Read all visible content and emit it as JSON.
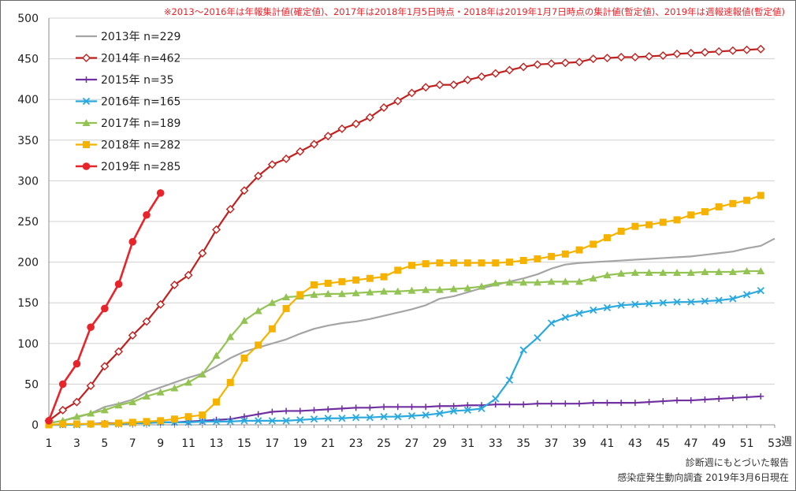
{
  "chart_data": {
    "type": "line",
    "title": "",
    "note": "※2013～2016年は年報集計値(確定値)、2017年は2018年1月5日時点・2018年は2019年1月7日時点の集計値(暫定値)、2019年は週報速報値(暫定値)",
    "xlabel": "週",
    "ylabel": "",
    "xlim": [
      1,
      53
    ],
    "ylim": [
      0,
      500
    ],
    "x_ticks": [
      1,
      3,
      5,
      7,
      9,
      11,
      13,
      15,
      17,
      19,
      21,
      23,
      25,
      27,
      29,
      31,
      33,
      35,
      37,
      39,
      41,
      43,
      45,
      47,
      49,
      51,
      53
    ],
    "y_ticks": [
      0,
      50,
      100,
      150,
      200,
      250,
      300,
      350,
      400,
      450,
      500
    ],
    "grid": "horizontal",
    "legend_position": "top-left",
    "source_lines": [
      "診断週にもとづいた報告",
      "感染症発生動向調査 2019年3月6日現在"
    ],
    "series": [
      {
        "name": "2013年 n=229",
        "color": "#a5a5a5",
        "marker": "none",
        "values": [
          2,
          5,
          9,
          14,
          22,
          26,
          31,
          40,
          46,
          52,
          58,
          63,
          72,
          82,
          90,
          95,
          100,
          105,
          112,
          118,
          122,
          125,
          127,
          130,
          134,
          138,
          142,
          147,
          155,
          158,
          163,
          168,
          172,
          176,
          180,
          185,
          192,
          197,
          199,
          200,
          201,
          202,
          203,
          204,
          205,
          206,
          207,
          209,
          211,
          213,
          217,
          220,
          229
        ]
      },
      {
        "name": "2014年 n=462",
        "color": "#c0201e",
        "marker": "diamond-open",
        "values": [
          5,
          18,
          28,
          48,
          72,
          90,
          110,
          127,
          148,
          172,
          184,
          211,
          240,
          265,
          288,
          306,
          320,
          327,
          336,
          345,
          355,
          364,
          370,
          378,
          390,
          398,
          408,
          415,
          418,
          418,
          424,
          428,
          432,
          436,
          440,
          443,
          444,
          445,
          446,
          450,
          451,
          452,
          452,
          453,
          454,
          456,
          457,
          458,
          459,
          460,
          461,
          462
        ]
      },
      {
        "name": "2015年 n=35",
        "color": "#7030a0",
        "marker": "plus",
        "values": [
          0,
          0,
          1,
          1,
          2,
          2,
          2,
          3,
          3,
          3,
          4,
          5,
          6,
          7,
          10,
          13,
          16,
          17,
          17,
          18,
          19,
          20,
          21,
          21,
          22,
          22,
          22,
          22,
          23,
          23,
          24,
          24,
          25,
          25,
          25,
          26,
          26,
          26,
          26,
          27,
          27,
          27,
          27,
          28,
          29,
          30,
          30,
          31,
          32,
          33,
          34,
          35
        ]
      },
      {
        "name": "2016年 n=165",
        "color": "#2aa9df",
        "marker": "x",
        "values": [
          0,
          0,
          0,
          1,
          1,
          1,
          2,
          2,
          3,
          3,
          3,
          4,
          4,
          4,
          5,
          5,
          5,
          5,
          6,
          7,
          8,
          8,
          9,
          9,
          10,
          10,
          11,
          12,
          14,
          17,
          18,
          20,
          32,
          55,
          92,
          107,
          125,
          132,
          137,
          141,
          144,
          147,
          148,
          149,
          150,
          151,
          151,
          152,
          153,
          155,
          160,
          165
        ]
      },
      {
        "name": "2017年 n=189",
        "color": "#92c353",
        "marker": "triangle",
        "values": [
          2,
          5,
          10,
          14,
          18,
          24,
          28,
          35,
          40,
          45,
          52,
          62,
          85,
          108,
          128,
          140,
          150,
          157,
          158,
          160,
          161,
          161,
          162,
          163,
          164,
          164,
          165,
          166,
          166,
          167,
          168,
          170,
          174,
          175,
          175,
          175,
          176,
          176,
          176,
          180,
          184,
          186,
          187,
          187,
          187,
          187,
          187,
          188,
          188,
          188,
          189,
          189
        ]
      },
      {
        "name": "2018年 n=282",
        "color": "#f5b300",
        "marker": "square",
        "values": [
          0,
          1,
          1,
          1,
          1,
          2,
          3,
          4,
          5,
          7,
          10,
          12,
          28,
          52,
          82,
          98,
          118,
          143,
          160,
          172,
          174,
          176,
          178,
          180,
          182,
          190,
          196,
          198,
          199,
          199,
          199,
          199,
          199,
          200,
          202,
          204,
          207,
          210,
          215,
          222,
          230,
          238,
          244,
          246,
          249,
          252,
          258,
          262,
          268,
          272,
          276,
          282
        ]
      },
      {
        "name": "2019年 n=285",
        "color": "#e8232a",
        "marker": "circle",
        "values": [
          5,
          50,
          75,
          120,
          143,
          173,
          225,
          258,
          285
        ]
      }
    ]
  }
}
